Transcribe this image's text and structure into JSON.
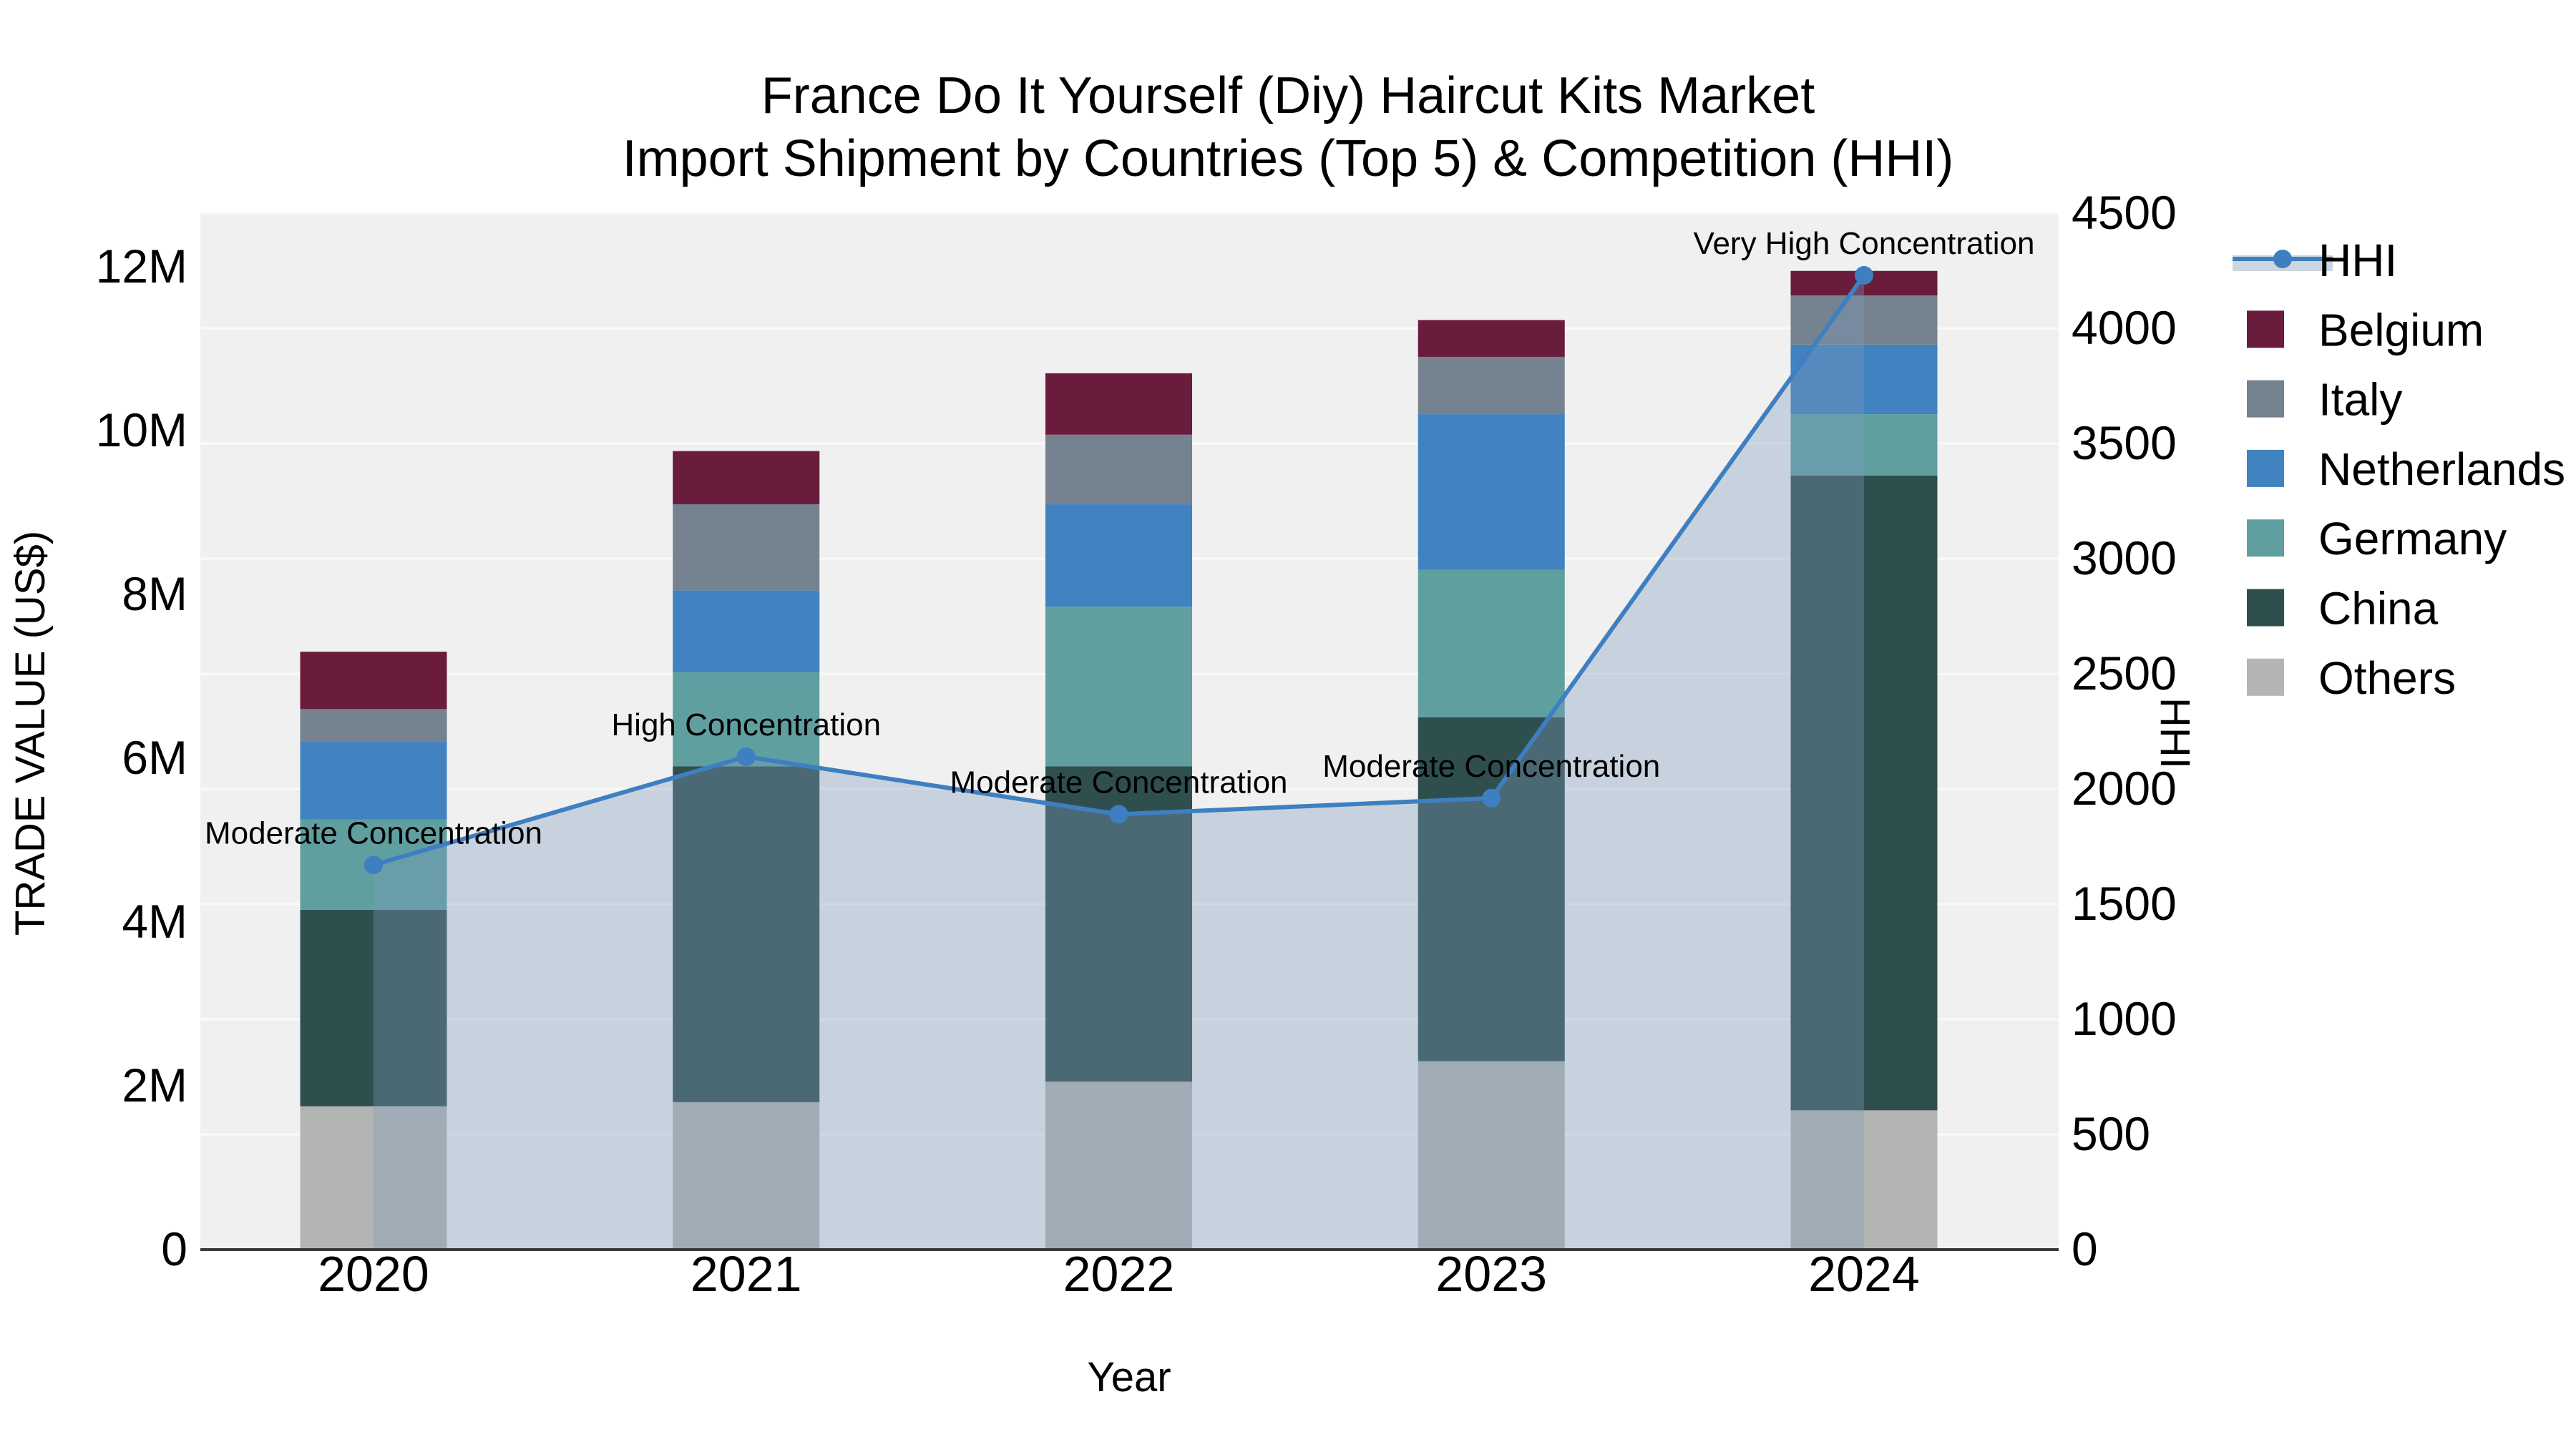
{
  "chart_data": {
    "type": "combo-stacked-bar-line",
    "title_line1": "France Do It Yourself (Diy) Haircut Kits Market",
    "title_line2": "Import Shipment by Countries (Top 5) & Competition (HHI)",
    "x_axis": {
      "title": "Year",
      "categories": [
        "2020",
        "2021",
        "2022",
        "2023",
        "2024"
      ]
    },
    "y_left_axis": {
      "title": "TRADE VALUE (US$)",
      "tick_labels": [
        "0",
        "2M",
        "4M",
        "6M",
        "8M",
        "10M",
        "12M"
      ],
      "tick_values_musd": [
        0,
        2,
        4,
        6,
        8,
        10,
        12
      ],
      "range_musd": [
        0,
        12.66
      ]
    },
    "y_right_axis": {
      "title": "HHI",
      "tick_labels": [
        "0",
        "500",
        "1000",
        "1500",
        "2000",
        "2500",
        "3000",
        "3500",
        "4000",
        "4500"
      ],
      "tick_values": [
        0,
        500,
        1000,
        1500,
        2000,
        2500,
        3000,
        3500,
        4000,
        4500
      ],
      "range": [
        0,
        4500
      ]
    },
    "stacked_series_bottom_to_top": [
      {
        "name": "Others",
        "color": "#b3b5b3",
        "values_musd": [
          1.75,
          1.8,
          2.05,
          2.3,
          1.7
        ]
      },
      {
        "name": "China",
        "color": "#2f4f4f",
        "values_musd": [
          2.4,
          4.1,
          3.85,
          4.2,
          7.75
        ]
      },
      {
        "name": "Germany",
        "color": "#5f9fa0",
        "values_musd": [
          1.1,
          1.15,
          1.95,
          1.8,
          0.75
        ]
      },
      {
        "name": "Netherlands",
        "color": "#4182c0",
        "values_musd": [
          0.95,
          1.0,
          1.25,
          1.9,
          0.85
        ]
      },
      {
        "name": "Italy",
        "color": "#75828f",
        "values_musd": [
          0.4,
          1.05,
          0.85,
          0.7,
          0.6
        ]
      },
      {
        "name": "Belgium",
        "color": "#6a1c3d",
        "values_musd": [
          0.7,
          0.65,
          0.75,
          0.45,
          0.3
        ]
      }
    ],
    "bar_totals_musd": [
      7.3,
      9.75,
      10.7,
      11.35,
      11.95
    ],
    "hhi_line": {
      "name": "HHI",
      "values": [
        1670,
        2140,
        1890,
        1960,
        4230
      ],
      "line_color": "#3e7fc1",
      "marker_color": "#3e7fc1",
      "area_fill_color": "rgba(125,155,189,0.35)",
      "annotations": [
        "Moderate Concentration",
        "High Concentration",
        "Moderate Concentration",
        "Moderate Concentration",
        "Very High Concentration"
      ]
    },
    "legend": {
      "items": [
        {
          "label": "HHI",
          "type": "line"
        },
        {
          "label": "Belgium",
          "type": "swatch",
          "color": "#6a1c3d"
        },
        {
          "label": "Italy",
          "type": "swatch",
          "color": "#75828f"
        },
        {
          "label": "Netherlands",
          "type": "swatch",
          "color": "#4182c0"
        },
        {
          "label": "Germany",
          "type": "swatch",
          "color": "#5f9fa0"
        },
        {
          "label": "China",
          "type": "swatch",
          "color": "#2f4f4f"
        },
        {
          "label": "Others",
          "type": "swatch",
          "color": "#b3b5b3"
        }
      ],
      "hhi_band_color": "#cdd5df"
    },
    "style_colors": {
      "plot_background": "#f0f0f0",
      "gridline": "#fafafa",
      "axis_line": "#3a3a3a",
      "text": "#000000"
    }
  }
}
